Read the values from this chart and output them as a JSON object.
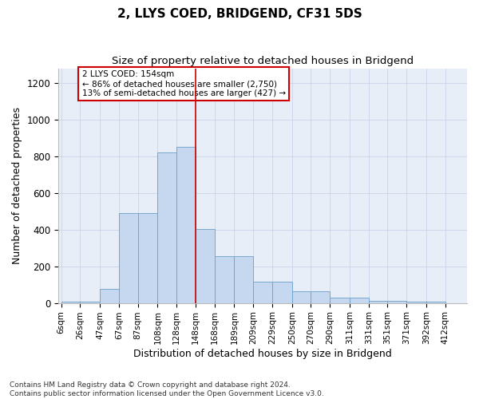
{
  "title": "2, LLYS COED, BRIDGEND, CF31 5DS",
  "subtitle": "Size of property relative to detached houses in Bridgend",
  "xlabel": "Distribution of detached houses by size in Bridgend",
  "ylabel": "Number of detached properties",
  "bar_color": "#c5d8ef",
  "bar_edge_color": "#6b9fc8",
  "bar_left_edges": [
    6,
    26,
    47,
    67,
    87,
    108,
    128,
    148,
    168,
    189,
    209,
    229,
    250,
    270,
    290,
    311,
    331,
    351,
    371,
    392
  ],
  "bar_widths": [
    20,
    21,
    20,
    20,
    21,
    20,
    20,
    20,
    21,
    20,
    20,
    21,
    20,
    20,
    21,
    20,
    20,
    20,
    21,
    20
  ],
  "bar_heights": [
    8,
    8,
    75,
    490,
    490,
    820,
    850,
    405,
    255,
    255,
    115,
    115,
    65,
    65,
    28,
    28,
    13,
    13,
    8,
    8
  ],
  "tick_labels": [
    "6sqm",
    "26sqm",
    "47sqm",
    "67sqm",
    "87sqm",
    "108sqm",
    "128sqm",
    "148sqm",
    "168sqm",
    "189sqm",
    "209sqm",
    "229sqm",
    "250sqm",
    "270sqm",
    "290sqm",
    "311sqm",
    "331sqm",
    "351sqm",
    "371sqm",
    "392sqm",
    "412sqm"
  ],
  "tick_positions": [
    6,
    26,
    47,
    67,
    87,
    108,
    128,
    148,
    168,
    189,
    209,
    229,
    250,
    270,
    290,
    311,
    331,
    351,
    371,
    392,
    412
  ],
  "vline_x": 148,
  "vline_color": "#cc0000",
  "annotation_text": "2 LLYS COED: 154sqm\n← 86% of detached houses are smaller (2,750)\n13% of semi-detached houses are larger (427) →",
  "annotation_box_color": "#cc0000",
  "ylim": [
    0,
    1280
  ],
  "xlim": [
    3,
    435
  ],
  "bg_color": "#e8eef8",
  "fig_bg_color": "#ffffff",
  "grid_color": "#c8d4e8",
  "footer_line1": "Contains HM Land Registry data © Crown copyright and database right 2024.",
  "footer_line2": "Contains public sector information licensed under the Open Government Licence v3.0.",
  "title_fontsize": 11,
  "subtitle_fontsize": 9.5,
  "axis_label_fontsize": 9,
  "tick_fontsize": 7.5,
  "annotation_fontsize": 7.5,
  "footer_fontsize": 6.5,
  "ylabel_fontsize": 9
}
